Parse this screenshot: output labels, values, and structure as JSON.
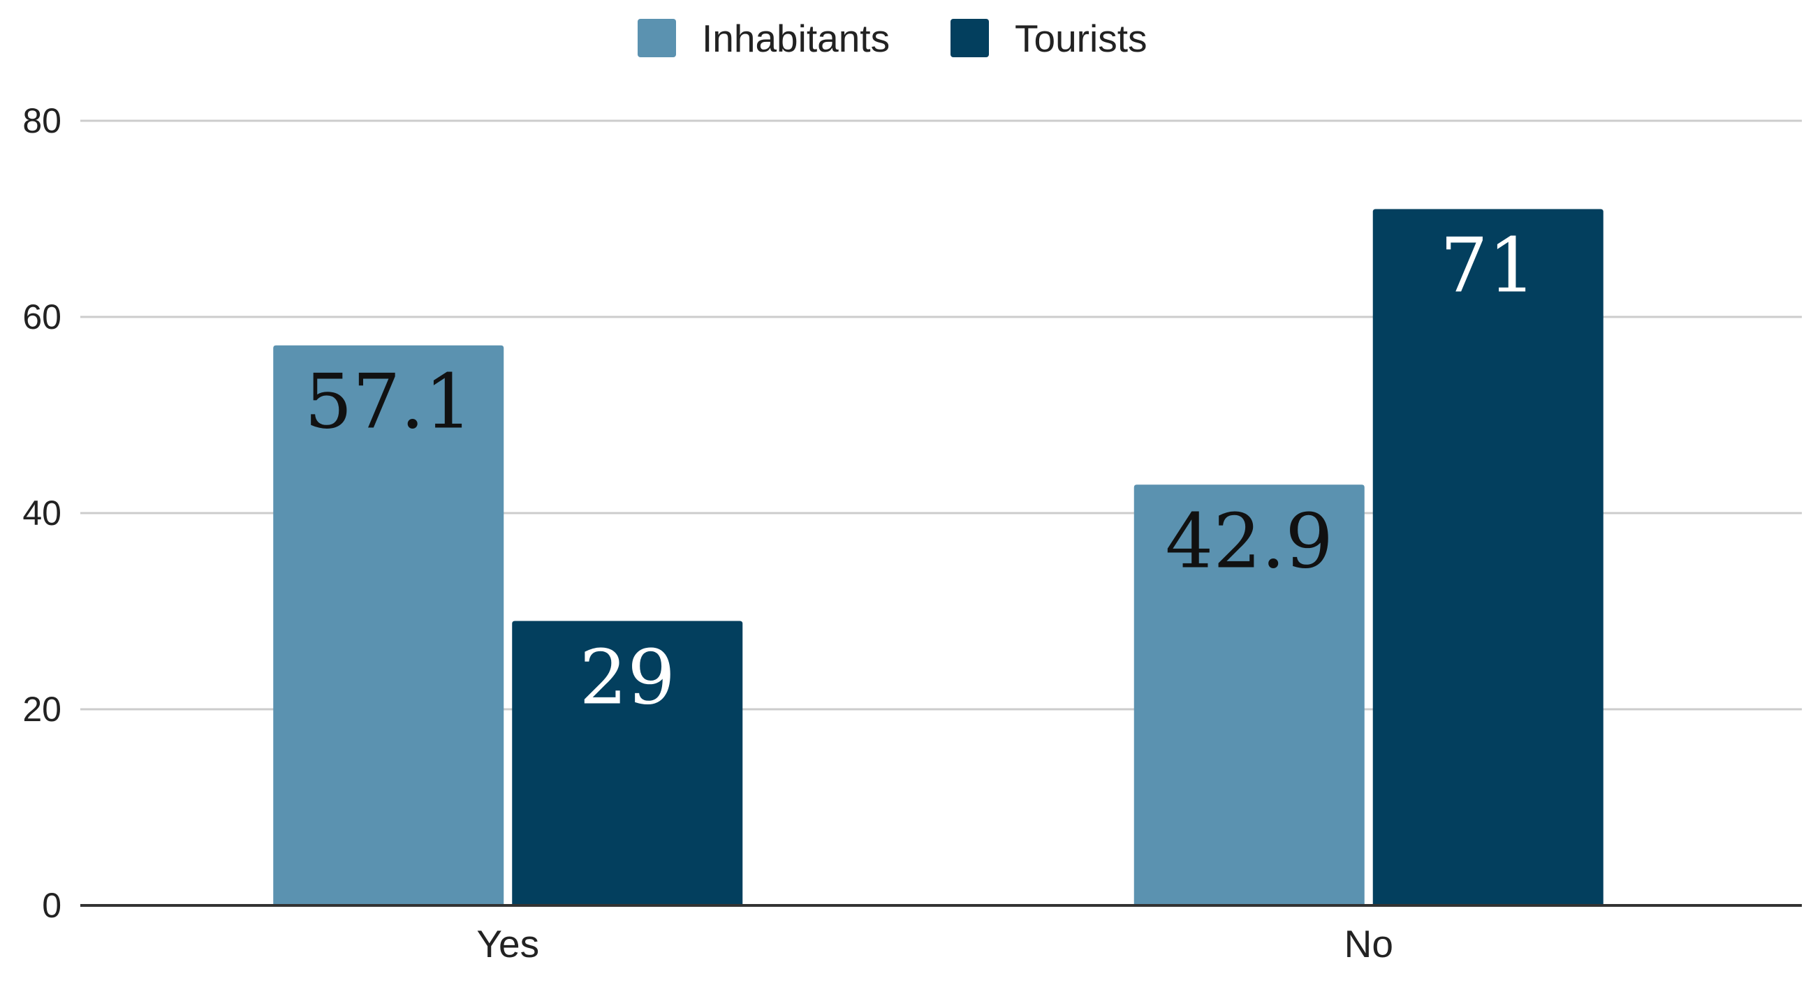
{
  "chart_data": {
    "type": "bar",
    "categories": [
      "Yes",
      "No"
    ],
    "series": [
      {
        "name": "Inhabitants",
        "values": [
          57.1,
          42.9
        ],
        "color": "#5b92b0",
        "label_color": "#111111"
      },
      {
        "name": "Tourists",
        "values": [
          29,
          71
        ],
        "color": "#033f5e",
        "label_color": "#ffffff"
      }
    ],
    "data_labels": [
      [
        "57.1",
        "42.9"
      ],
      [
        "29",
        "71"
      ]
    ],
    "yticks": [
      0,
      20,
      40,
      60,
      80
    ],
    "ylim": [
      0,
      80
    ],
    "grid": true,
    "legend_position": "top-center",
    "title": "",
    "xlabel": "",
    "ylabel": ""
  }
}
